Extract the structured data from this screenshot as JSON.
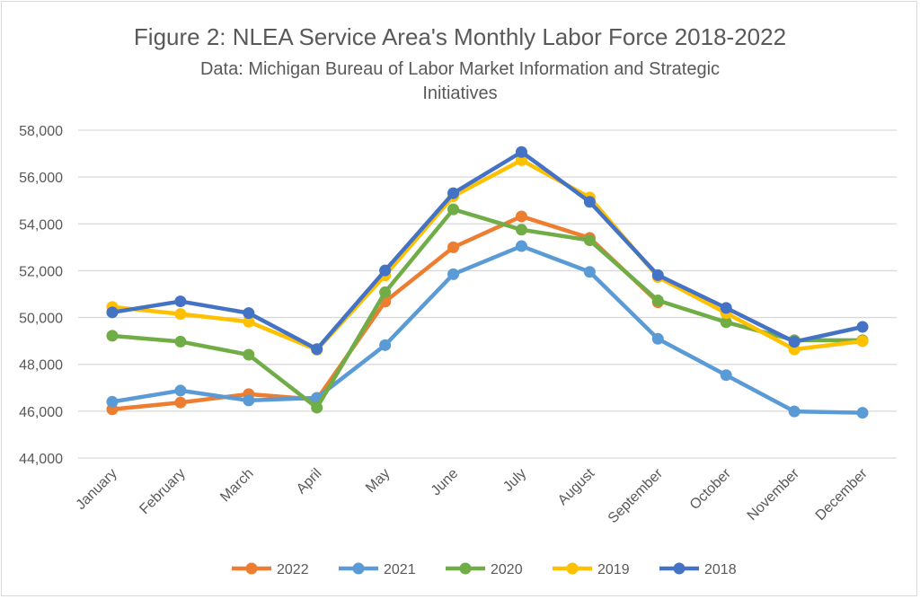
{
  "chart_data": {
    "type": "line",
    "title": "Figure 2: NLEA Service Area's Monthly Labor Force 2018-2022",
    "subtitle_lines": [
      "Data: Michigan Bureau of Labor Market Information and Strategic",
      "Initiatives"
    ],
    "xlabel": "",
    "ylabel": "",
    "ylim": [
      44000,
      58000
    ],
    "ytick_step": 2000,
    "yticks": [
      "44,000",
      "46,000",
      "48,000",
      "50,000",
      "52,000",
      "54,000",
      "56,000",
      "58,000"
    ],
    "grid": true,
    "legend_position": "bottom",
    "categories": [
      "January",
      "February",
      "March",
      "April",
      "May",
      "June",
      "July",
      "August",
      "September",
      "October",
      "November",
      "December"
    ],
    "series": [
      {
        "name": "2022",
        "color": "#ED7D31",
        "values": [
          46080,
          46370,
          46730,
          46500,
          50680,
          53000,
          54320,
          53400,
          50650,
          null,
          null,
          null
        ]
      },
      {
        "name": "2021",
        "color": "#5B9BD5",
        "values": [
          46400,
          46880,
          46460,
          46570,
          48820,
          51850,
          53050,
          51950,
          49090,
          47540,
          45990,
          45930
        ]
      },
      {
        "name": "2020",
        "color": "#70AD47",
        "values": [
          49220,
          48970,
          48410,
          46150,
          51080,
          54620,
          53750,
          53300,
          50730,
          49800,
          49030,
          49030
        ]
      },
      {
        "name": "2019",
        "color": "#FFC000",
        "values": [
          50450,
          50150,
          49820,
          48620,
          51800,
          55180,
          56720,
          55130,
          51730,
          50190,
          48640,
          48990
        ]
      },
      {
        "name": "2018",
        "color": "#4472C4",
        "values": [
          50220,
          50690,
          50190,
          48650,
          52010,
          55310,
          57070,
          54940,
          51810,
          50410,
          48960,
          49600
        ]
      }
    ]
  }
}
